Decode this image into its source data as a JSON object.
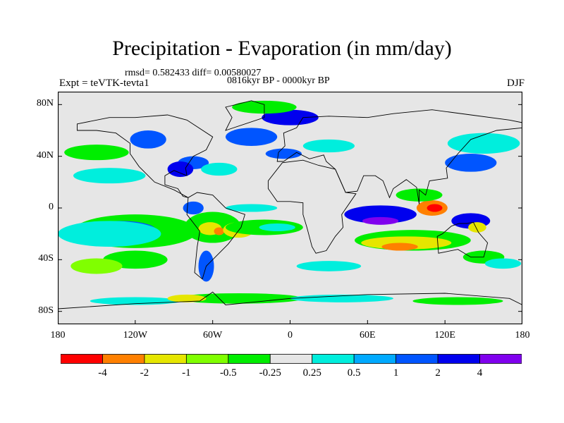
{
  "title": "Precipitation - Evaporation (in mm/day)",
  "stats": "rmsd= 0.582433  diff= 0.00580027",
  "period": "0816kyr BP - 0000kyr BP",
  "experiment": "Expt = teVTK-tevta1",
  "season": "DJF",
  "map": {
    "lon_range": [
      -180,
      180
    ],
    "lat_range": [
      -90,
      90
    ],
    "lat_ticks": [
      {
        "value": 80,
        "label": "80N"
      },
      {
        "value": 40,
        "label": "40N"
      },
      {
        "value": 0,
        "label": "0"
      },
      {
        "value": -40,
        "label": "40S"
      },
      {
        "value": -80,
        "label": "80S"
      }
    ],
    "lon_ticks": [
      {
        "value": -180,
        "label": "180"
      },
      {
        "value": -120,
        "label": "120W"
      },
      {
        "value": -60,
        "label": "60W"
      },
      {
        "value": 0,
        "label": "0"
      },
      {
        "value": 60,
        "label": "60E"
      },
      {
        "value": 120,
        "label": "120E"
      },
      {
        "value": 180,
        "label": "180"
      }
    ],
    "background_color": "#e6e6e6",
    "regions": [
      {
        "lon": -120,
        "lat": -18,
        "rx": 48,
        "ry": 13,
        "level": "g05"
      },
      {
        "lon": -132,
        "lat": -17,
        "rx": 28,
        "ry": 7,
        "level": "b1"
      },
      {
        "lon": -122,
        "lat": -18,
        "rx": 14,
        "ry": 5,
        "level": "b2"
      },
      {
        "lon": -140,
        "lat": -20,
        "rx": 40,
        "ry": 10,
        "level": "c025"
      },
      {
        "lon": -120,
        "lat": -40,
        "rx": 25,
        "ry": 7,
        "level": "g05"
      },
      {
        "lon": -150,
        "lat": -45,
        "rx": 20,
        "ry": 6,
        "level": "l1"
      },
      {
        "lon": -60,
        "lat": -15,
        "rx": 22,
        "ry": 12,
        "level": "g05"
      },
      {
        "lon": -62,
        "lat": -16,
        "rx": 9,
        "ry": 5,
        "level": "y2"
      },
      {
        "lon": -55,
        "lat": -18,
        "rx": 4,
        "ry": 3,
        "level": "o4"
      },
      {
        "lon": -40,
        "lat": -17,
        "rx": 12,
        "ry": 6,
        "level": "y2"
      },
      {
        "lon": -20,
        "lat": -15,
        "rx": 30,
        "ry": 6,
        "level": "g05"
      },
      {
        "lon": -10,
        "lat": -15,
        "rx": 14,
        "ry": 3,
        "level": "c025"
      },
      {
        "lon": -75,
        "lat": 0,
        "rx": 8,
        "ry": 5,
        "level": "b1"
      },
      {
        "lon": -30,
        "lat": 0,
        "rx": 20,
        "ry": 3,
        "level": "c025"
      },
      {
        "lon": -65,
        "lat": -45,
        "rx": 6,
        "ry": 12,
        "level": "b1"
      },
      {
        "lon": -140,
        "lat": 25,
        "rx": 28,
        "ry": 6,
        "level": "c025"
      },
      {
        "lon": -150,
        "lat": 43,
        "rx": 25,
        "ry": 6,
        "level": "g05"
      },
      {
        "lon": -110,
        "lat": 53,
        "rx": 14,
        "ry": 7,
        "level": "b1"
      },
      {
        "lon": -75,
        "lat": 35,
        "rx": 12,
        "ry": 5,
        "level": "b1"
      },
      {
        "lon": -85,
        "lat": 30,
        "rx": 10,
        "ry": 6,
        "level": "b2"
      },
      {
        "lon": -55,
        "lat": 30,
        "rx": 14,
        "ry": 5,
        "level": "c025"
      },
      {
        "lon": -30,
        "lat": 55,
        "rx": 20,
        "ry": 7,
        "level": "b1"
      },
      {
        "lon": 0,
        "lat": 70,
        "rx": 22,
        "ry": 6,
        "level": "b2"
      },
      {
        "lon": -20,
        "lat": 78,
        "rx": 25,
        "ry": 5,
        "level": "g05"
      },
      {
        "lon": -5,
        "lat": 42,
        "rx": 14,
        "ry": 4,
        "level": "b1"
      },
      {
        "lon": 30,
        "lat": 48,
        "rx": 20,
        "ry": 5,
        "level": "c025"
      },
      {
        "lon": 70,
        "lat": -5,
        "rx": 28,
        "ry": 7,
        "level": "b2"
      },
      {
        "lon": 70,
        "lat": -10,
        "rx": 14,
        "ry": 3,
        "level": "b4"
      },
      {
        "lon": 95,
        "lat": -25,
        "rx": 45,
        "ry": 8,
        "level": "g05"
      },
      {
        "lon": 90,
        "lat": -27,
        "rx": 35,
        "ry": 5,
        "level": "y2"
      },
      {
        "lon": 85,
        "lat": -30,
        "rx": 14,
        "ry": 3,
        "level": "o4"
      },
      {
        "lon": 110,
        "lat": 0,
        "rx": 12,
        "ry": 6,
        "level": "o4"
      },
      {
        "lon": 112,
        "lat": 0,
        "rx": 6,
        "ry": 3,
        "level": "r4"
      },
      {
        "lon": 140,
        "lat": -10,
        "rx": 15,
        "ry": 6,
        "level": "b2"
      },
      {
        "lon": 145,
        "lat": -15,
        "rx": 7,
        "ry": 4,
        "level": "y2"
      },
      {
        "lon": 140,
        "lat": 35,
        "rx": 20,
        "ry": 7,
        "level": "b1"
      },
      {
        "lon": 150,
        "lat": 50,
        "rx": 28,
        "ry": 8,
        "level": "c025"
      },
      {
        "lon": 100,
        "lat": 10,
        "rx": 18,
        "ry": 5,
        "level": "g05"
      },
      {
        "lon": 150,
        "lat": -38,
        "rx": 16,
        "ry": 5,
        "level": "g05"
      },
      {
        "lon": 165,
        "lat": -43,
        "rx": 14,
        "ry": 4,
        "level": "c025"
      },
      {
        "lon": 30,
        "lat": -45,
        "rx": 25,
        "ry": 4,
        "level": "c025"
      },
      {
        "lon": -40,
        "lat": -70,
        "rx": 50,
        "ry": 4,
        "level": "g05"
      },
      {
        "lon": 40,
        "lat": -70,
        "rx": 40,
        "ry": 3,
        "level": "c025"
      },
      {
        "lon": -120,
        "lat": -72,
        "rx": 35,
        "ry": 3,
        "level": "c025"
      },
      {
        "lon": 130,
        "lat": -72,
        "rx": 35,
        "ry": 3,
        "level": "g05"
      },
      {
        "lon": -80,
        "lat": -70,
        "rx": 15,
        "ry": 3,
        "level": "y2"
      }
    ],
    "continents": [
      [
        [
          -165,
          65
        ],
        [
          -140,
          70
        ],
        [
          -120,
          70
        ],
        [
          -95,
          72
        ],
        [
          -80,
          68
        ],
        [
          -60,
          55
        ],
        [
          -65,
          45
        ],
        [
          -75,
          40
        ],
        [
          -81,
          31
        ],
        [
          -80,
          25
        ],
        [
          -90,
          29
        ],
        [
          -97,
          25
        ],
        [
          -97,
          18
        ],
        [
          -87,
          15
        ],
        [
          -83,
          9
        ],
        [
          -79,
          8
        ],
        [
          -90,
          14
        ],
        [
          -105,
          20
        ],
        [
          -117,
          32
        ],
        [
          -124,
          42
        ],
        [
          -124,
          50
        ],
        [
          -135,
          58
        ],
        [
          -150,
          60
        ],
        [
          -165,
          60
        ]
      ],
      [
        [
          -79,
          8
        ],
        [
          -72,
          12
        ],
        [
          -60,
          10
        ],
        [
          -50,
          0
        ],
        [
          -35,
          -5
        ],
        [
          -38,
          -15
        ],
        [
          -48,
          -28
        ],
        [
          -58,
          -38
        ],
        [
          -65,
          -45
        ],
        [
          -68,
          -55
        ],
        [
          -74,
          -50
        ],
        [
          -72,
          -30
        ],
        [
          -70,
          -18
        ],
        [
          -80,
          -5
        ]
      ],
      [
        [
          -10,
          36
        ],
        [
          -9,
          43
        ],
        [
          -4,
          48
        ],
        [
          -5,
          58
        ],
        [
          5,
          62
        ],
        [
          10,
          70
        ],
        [
          30,
          71
        ],
        [
          60,
          70
        ],
        [
          80,
          73
        ],
        [
          110,
          76
        ],
        [
          140,
          72
        ],
        [
          170,
          68
        ],
        [
          180,
          66
        ],
        [
          180,
          62
        ],
        [
          160,
          60
        ],
        [
          140,
          53
        ],
        [
          130,
          42
        ],
        [
          121,
          31
        ],
        [
          122,
          23
        ],
        [
          108,
          21
        ],
        [
          105,
          10
        ],
        [
          100,
          14
        ],
        [
          100,
          3
        ],
        [
          98,
          16
        ],
        [
          90,
          22
        ],
        [
          80,
          15
        ],
        [
          77,
          8
        ],
        [
          72,
          21
        ],
        [
          66,
          25
        ],
        [
          57,
          25
        ],
        [
          52,
          13
        ],
        [
          43,
          12
        ],
        [
          35,
          30
        ],
        [
          28,
          36
        ],
        [
          26,
          41
        ],
        [
          15,
          38
        ],
        [
          5,
          43
        ],
        [
          -5,
          36
        ]
      ],
      [
        [
          -17,
          21
        ],
        [
          -17,
          15
        ],
        [
          -10,
          5
        ],
        [
          0,
          5
        ],
        [
          10,
          4
        ],
        [
          10,
          -5
        ],
        [
          13,
          -15
        ],
        [
          17,
          -30
        ],
        [
          20,
          -35
        ],
        [
          28,
          -33
        ],
        [
          35,
          -22
        ],
        [
          41,
          -15
        ],
        [
          40,
          -5
        ],
        [
          51,
          11
        ],
        [
          43,
          12
        ],
        [
          35,
          30
        ],
        [
          22,
          33
        ],
        [
          10,
          37
        ],
        [
          -6,
          35
        ]
      ],
      [
        [
          114,
          -22
        ],
        [
          118,
          -20
        ],
        [
          125,
          -14
        ],
        [
          131,
          -12
        ],
        [
          137,
          -12
        ],
        [
          142,
          -11
        ],
        [
          146,
          -19
        ],
        [
          153,
          -27
        ],
        [
          150,
          -38
        ],
        [
          140,
          -38
        ],
        [
          130,
          -32
        ],
        [
          115,
          -35
        ]
      ],
      [
        [
          -50,
          60
        ],
        [
          -45,
          70
        ],
        [
          -50,
          78
        ],
        [
          -30,
          83
        ],
        [
          -20,
          80
        ],
        [
          -20,
          70
        ]
      ],
      [
        [
          -180,
          -78
        ],
        [
          -120,
          -74
        ],
        [
          -70,
          -72
        ],
        [
          -60,
          -65
        ],
        [
          -50,
          -75
        ],
        [
          0,
          -70
        ],
        [
          60,
          -67
        ],
        [
          120,
          -66
        ],
        [
          170,
          -70
        ],
        [
          180,
          -75
        ],
        [
          180,
          -90
        ],
        [
          -180,
          -90
        ]
      ]
    ]
  },
  "colorbar": {
    "colors": [
      "#ff0000",
      "#ff8000",
      "#e6e600",
      "#80ff00",
      "#00ee00",
      "#e6e6e6",
      "#00eedd",
      "#00aaff",
      "#0055ff",
      "#0000ee",
      "#8000ee"
    ],
    "labels": [
      "-4",
      "-2",
      "-1",
      "-0.5",
      "-0.25",
      "0.25",
      "0.5",
      "1",
      "2",
      "4"
    ]
  },
  "level_colors": {
    "r4": "#ff0000",
    "o4": "#ff8000",
    "y2": "#e6e600",
    "l1": "#80ff00",
    "g05": "#00ee00",
    "c025": "#00eedd",
    "b05": "#00aaff",
    "b1": "#0055ff",
    "b2": "#0000ee",
    "b4": "#8000ee"
  }
}
